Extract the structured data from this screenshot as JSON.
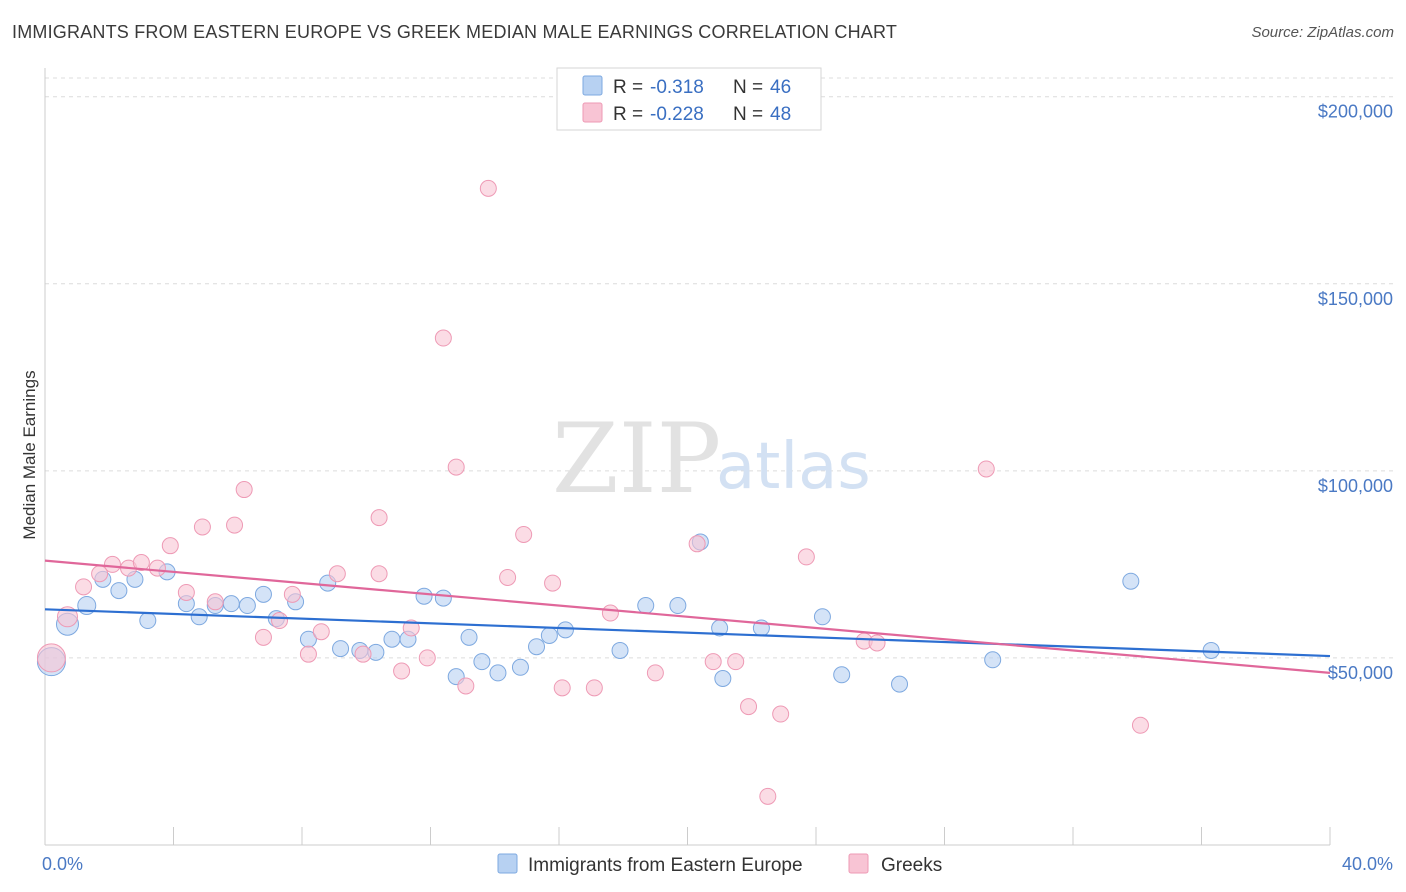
{
  "title": "IMMIGRANTS FROM EASTERN EUROPE VS GREEK MEDIAN MALE EARNINGS CORRELATION CHART",
  "source": "Source: ZipAtlas.com",
  "watermark": {
    "zip": "ZIP",
    "atlas": "atlas"
  },
  "legend": {
    "rows": [
      {
        "r_label": "R =",
        "r_value": "-0.318",
        "n_label": "N =",
        "n_value": "46"
      },
      {
        "r_label": "R =",
        "r_value": "-0.228",
        "n_label": "N =",
        "n_value": "48"
      }
    ]
  },
  "colors": {
    "blue_fill": "#b7d1f2",
    "blue_stroke": "#7ea9e0",
    "blue_line": "#2d6fd1",
    "pink_fill": "#f8c4d4",
    "pink_stroke": "#ee9ab5",
    "pink_line": "#e0679a",
    "grid": "#dcdcdc",
    "axis": "#cccccc"
  },
  "chart_data": {
    "type": "scatter",
    "xlabel": "",
    "ylabel": "Median Male Earnings",
    "xlim": [
      0,
      40
    ],
    "ylim": [
      0,
      205000
    ],
    "x_tick_labels": [
      {
        "value": 0,
        "label": "0.0%"
      },
      {
        "value": 40,
        "label": "40.0%"
      }
    ],
    "y_ticks": [
      {
        "value": 50000,
        "label": "$50,000"
      },
      {
        "value": 100000,
        "label": "$100,000"
      },
      {
        "value": 150000,
        "label": "$150,000"
      },
      {
        "value": 200000,
        "label": "$200,000"
      }
    ],
    "x_minor_ticks": [
      0,
      4,
      8,
      12,
      16,
      20,
      24,
      28,
      32,
      36,
      40
    ],
    "grid": true,
    "legend_position": "bottom",
    "series": [
      {
        "name": "Immigrants from Eastern Europe",
        "color": "blue",
        "trend": [
          [
            0,
            63000
          ],
          [
            40,
            50500
          ]
        ],
        "points": [
          [
            0.2,
            49000,
            14
          ],
          [
            0.7,
            59000,
            11
          ],
          [
            1.3,
            64000,
            9
          ],
          [
            1.8,
            71000,
            8
          ],
          [
            2.3,
            68000,
            8
          ],
          [
            2.8,
            71000,
            8
          ],
          [
            3.2,
            60000,
            8
          ],
          [
            3.8,
            73000,
            8
          ],
          [
            4.4,
            64500,
            8
          ],
          [
            4.8,
            61000,
            8
          ],
          [
            5.3,
            64000,
            8
          ],
          [
            5.8,
            64500,
            8
          ],
          [
            6.3,
            64000,
            8
          ],
          [
            6.8,
            67000,
            8
          ],
          [
            7.2,
            60500,
            8
          ],
          [
            7.8,
            65000,
            8
          ],
          [
            8.2,
            55000,
            8
          ],
          [
            8.8,
            70000,
            8
          ],
          [
            9.2,
            52500,
            8
          ],
          [
            9.8,
            52000,
            8
          ],
          [
            10.3,
            51500,
            8
          ],
          [
            10.8,
            55000,
            8
          ],
          [
            11.3,
            55000,
            8
          ],
          [
            11.8,
            66500,
            8
          ],
          [
            12.4,
            66000,
            8
          ],
          [
            12.8,
            45000,
            8
          ],
          [
            13.2,
            55500,
            8
          ],
          [
            13.6,
            49000,
            8
          ],
          [
            14.1,
            46000,
            8
          ],
          [
            14.8,
            47500,
            8
          ],
          [
            15.3,
            53000,
            8
          ],
          [
            15.7,
            56000,
            8
          ],
          [
            16.2,
            57500,
            8
          ],
          [
            17.9,
            52000,
            8
          ],
          [
            18.7,
            64000,
            8
          ],
          [
            19.7,
            64000,
            8
          ],
          [
            20.4,
            81000,
            8
          ],
          [
            21.0,
            58000,
            8
          ],
          [
            21.1,
            44500,
            8
          ],
          [
            22.3,
            58000,
            8
          ],
          [
            24.2,
            61000,
            8
          ],
          [
            24.8,
            45500,
            8
          ],
          [
            26.6,
            43000,
            8
          ],
          [
            29.5,
            49500,
            8
          ],
          [
            33.8,
            70500,
            8
          ],
          [
            36.3,
            52000,
            8
          ]
        ]
      },
      {
        "name": "Greeks",
        "color": "pink",
        "trend": [
          [
            0,
            76000
          ],
          [
            40,
            46000
          ]
        ],
        "points": [
          [
            0.2,
            50000,
            14
          ],
          [
            0.7,
            61000,
            10
          ],
          [
            1.2,
            69000,
            8
          ],
          [
            1.7,
            72500,
            8
          ],
          [
            2.1,
            75000,
            8
          ],
          [
            2.6,
            74000,
            8
          ],
          [
            3.0,
            75500,
            8
          ],
          [
            3.5,
            74000,
            8
          ],
          [
            3.9,
            80000,
            8
          ],
          [
            4.4,
            67500,
            8
          ],
          [
            4.9,
            85000,
            8
          ],
          [
            5.3,
            65000,
            8
          ],
          [
            5.9,
            85500,
            8
          ],
          [
            6.2,
            95000,
            8
          ],
          [
            6.8,
            55500,
            8
          ],
          [
            7.3,
            60000,
            8
          ],
          [
            7.7,
            67000,
            8
          ],
          [
            8.2,
            51000,
            8
          ],
          [
            8.6,
            57000,
            8
          ],
          [
            9.1,
            72500,
            8
          ],
          [
            9.9,
            51000,
            8
          ],
          [
            10.4,
            72500,
            8
          ],
          [
            10.4,
            87500,
            8
          ],
          [
            11.1,
            46500,
            8
          ],
          [
            11.4,
            58000,
            8
          ],
          [
            11.9,
            50000,
            8
          ],
          [
            12.4,
            135500,
            8
          ],
          [
            12.8,
            101000,
            8
          ],
          [
            13.1,
            42500,
            8
          ],
          [
            13.8,
            175500,
            8
          ],
          [
            14.4,
            71500,
            8
          ],
          [
            14.9,
            83000,
            8
          ],
          [
            15.8,
            70000,
            8
          ],
          [
            16.1,
            42000,
            8
          ],
          [
            17.1,
            42000,
            8
          ],
          [
            17.6,
            62000,
            8
          ],
          [
            19.0,
            46000,
            8
          ],
          [
            20.3,
            80500,
            8
          ],
          [
            20.8,
            49000,
            8
          ],
          [
            21.5,
            49000,
            8
          ],
          [
            21.9,
            37000,
            8
          ],
          [
            22.5,
            13000,
            8
          ],
          [
            22.9,
            35000,
            8
          ],
          [
            23.7,
            77000,
            8
          ],
          [
            25.5,
            54500,
            8
          ],
          [
            25.9,
            54000,
            8
          ],
          [
            29.3,
            100500,
            8
          ],
          [
            34.1,
            32000,
            8
          ]
        ]
      }
    ]
  }
}
